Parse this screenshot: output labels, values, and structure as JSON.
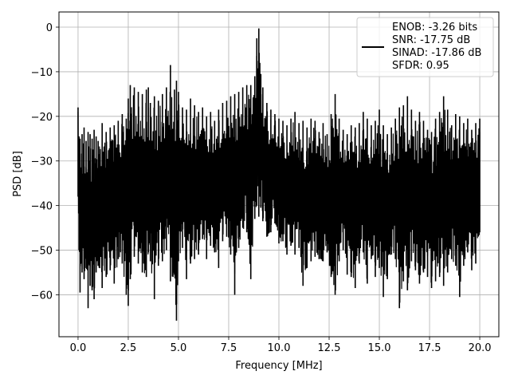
{
  "chart_data": {
    "type": "line",
    "title": "",
    "xlabel": "Frequency [MHz]",
    "ylabel": "PSD [dB]",
    "xlim": [
      -0.95,
      20.95
    ],
    "ylim": [
      -69.4,
      3.4
    ],
    "xticks": [
      0.0,
      2.5,
      5.0,
      7.5,
      10.0,
      12.5,
      15.0,
      17.5,
      20.0
    ],
    "xtick_labels": [
      "0.0",
      "2.5",
      "5.0",
      "7.5",
      "10.0",
      "12.5",
      "15.0",
      "17.5",
      "20.0"
    ],
    "yticks": [
      0,
      -10,
      -20,
      -30,
      -40,
      -50,
      -60
    ],
    "ytick_labels": [
      "0",
      "−10",
      "−20",
      "−30",
      "−40",
      "−50",
      "−60"
    ],
    "grid": true,
    "legend_position": "top-right",
    "legend": {
      "lines": [
        "ENOB: -3.26 bits",
        "SNR: -17.75 dB",
        "SINAD: -17.86 dB",
        "SFDR: 0.95"
      ]
    },
    "series": [
      {
        "color": "#000000",
        "x": [
          0.0,
          0.05,
          0.1,
          0.2,
          0.3,
          0.4,
          0.5,
          0.6,
          0.7,
          0.8,
          0.9,
          1.0,
          1.2,
          1.4,
          1.6,
          1.8,
          2.0,
          2.2,
          2.4,
          2.5,
          2.6,
          2.8,
          3.0,
          3.2,
          3.4,
          3.5,
          3.6,
          3.8,
          4.0,
          4.2,
          4.4,
          4.6,
          4.8,
          4.9,
          5.0,
          5.2,
          5.4,
          5.6,
          5.8,
          6.0,
          6.2,
          6.4,
          6.6,
          6.8,
          7.0,
          7.2,
          7.4,
          7.6,
          7.8,
          8.0,
          8.2,
          8.4,
          8.6,
          8.8,
          8.9,
          9.0,
          9.05,
          9.1,
          9.2,
          9.4,
          9.6,
          9.8,
          10.0,
          10.2,
          10.4,
          10.6,
          10.8,
          11.0,
          11.2,
          11.4,
          11.6,
          11.8,
          12.0,
          12.2,
          12.4,
          12.6,
          12.8,
          13.0,
          13.2,
          13.4,
          13.6,
          13.8,
          14.0,
          14.2,
          14.4,
          14.6,
          14.8,
          15.0,
          15.2,
          15.4,
          15.6,
          15.8,
          16.0,
          16.2,
          16.4,
          16.6,
          16.8,
          17.0,
          17.2,
          17.4,
          17.6,
          17.8,
          18.0,
          18.2,
          18.4,
          18.6,
          18.8,
          19.0,
          19.2,
          19.4,
          19.6,
          19.8,
          20.0
        ],
        "upper": [
          -18.0,
          -24.5,
          -25.0,
          -24.0,
          -22.5,
          -25.5,
          -23.5,
          -24.0,
          -25.0,
          -23.0,
          -24.5,
          -25.5,
          -21.5,
          -23.5,
          -22.5,
          -22.0,
          -21.0,
          -19.5,
          -20.5,
          -16.0,
          -13.0,
          -13.5,
          -14.5,
          -15.0,
          -14.0,
          -13.5,
          -17.0,
          -15.5,
          -16.5,
          -15.0,
          -13.5,
          -8.5,
          -14.0,
          -12.0,
          -14.5,
          -18.0,
          -18.5,
          -16.0,
          -17.5,
          -19.0,
          -18.0,
          -20.0,
          -19.0,
          -21.0,
          -18.5,
          -17.0,
          -16.5,
          -15.5,
          -15.0,
          -14.5,
          -13.5,
          -13.0,
          -13.0,
          -11.0,
          -2.5,
          -0.3,
          -8.0,
          -10.5,
          -13.5,
          -17.0,
          -18.5,
          -19.5,
          -20.5,
          -21.0,
          -22.0,
          -20.5,
          -19.0,
          -21.5,
          -21.0,
          -22.5,
          -20.5,
          -21.0,
          -23.5,
          -21.5,
          -24.0,
          -19.5,
          -15.0,
          -20.5,
          -23.0,
          -24.0,
          -22.0,
          -22.5,
          -21.5,
          -19.0,
          -20.5,
          -22.0,
          -21.0,
          -18.5,
          -22.0,
          -24.0,
          -22.5,
          -20.5,
          -18.0,
          -17.5,
          -15.5,
          -18.5,
          -21.0,
          -19.0,
          -21.0,
          -23.0,
          -23.5,
          -20.5,
          -19.0,
          -15.5,
          -18.5,
          -22.0,
          -19.5,
          -20.0,
          -21.5,
          -20.5,
          -23.0,
          -21.5,
          -20.5
        ],
        "lower": [
          -38.0,
          -50.0,
          -59.5,
          -55.0,
          -56.5,
          -54.0,
          -63.0,
          -58.0,
          -59.0,
          -61.0,
          -55.0,
          -53.5,
          -58.5,
          -56.0,
          -54.5,
          -57.5,
          -52.0,
          -53.0,
          -60.0,
          -62.5,
          -56.5,
          -51.5,
          -53.0,
          -55.0,
          -56.0,
          -50.5,
          -52.5,
          -61.0,
          -53.5,
          -52.5,
          -50.0,
          -57.0,
          -55.5,
          -65.8,
          -52.5,
          -49.5,
          -56.5,
          -53.0,
          -52.0,
          -51.0,
          -47.5,
          -52.0,
          -49.0,
          -50.5,
          -54.0,
          -48.0,
          -47.0,
          -51.0,
          -60.0,
          -49.5,
          -45.0,
          -46.0,
          -56.5,
          -43.0,
          -40.0,
          -42.5,
          -38.0,
          -40.5,
          -43.5,
          -47.0,
          -46.0,
          -44.0,
          -48.5,
          -48.0,
          -51.0,
          -49.0,
          -51.0,
          -49.5,
          -58.0,
          -54.0,
          -52.5,
          -51.5,
          -52.0,
          -52.5,
          -50.5,
          -56.0,
          -60.0,
          -52.5,
          -50.0,
          -55.5,
          -56.0,
          -58.5,
          -53.0,
          -50.5,
          -57.5,
          -52.0,
          -56.0,
          -54.0,
          -60.5,
          -56.5,
          -51.0,
          -52.0,
          -63.0,
          -57.0,
          -59.0,
          -52.5,
          -54.5,
          -57.5,
          -55.0,
          -56.0,
          -58.5,
          -57.0,
          -56.0,
          -58.0,
          -55.0,
          -52.0,
          -53.5,
          -60.5,
          -53.5,
          -50.5,
          -54.5,
          -53.0,
          -46.0
        ]
      }
    ]
  }
}
